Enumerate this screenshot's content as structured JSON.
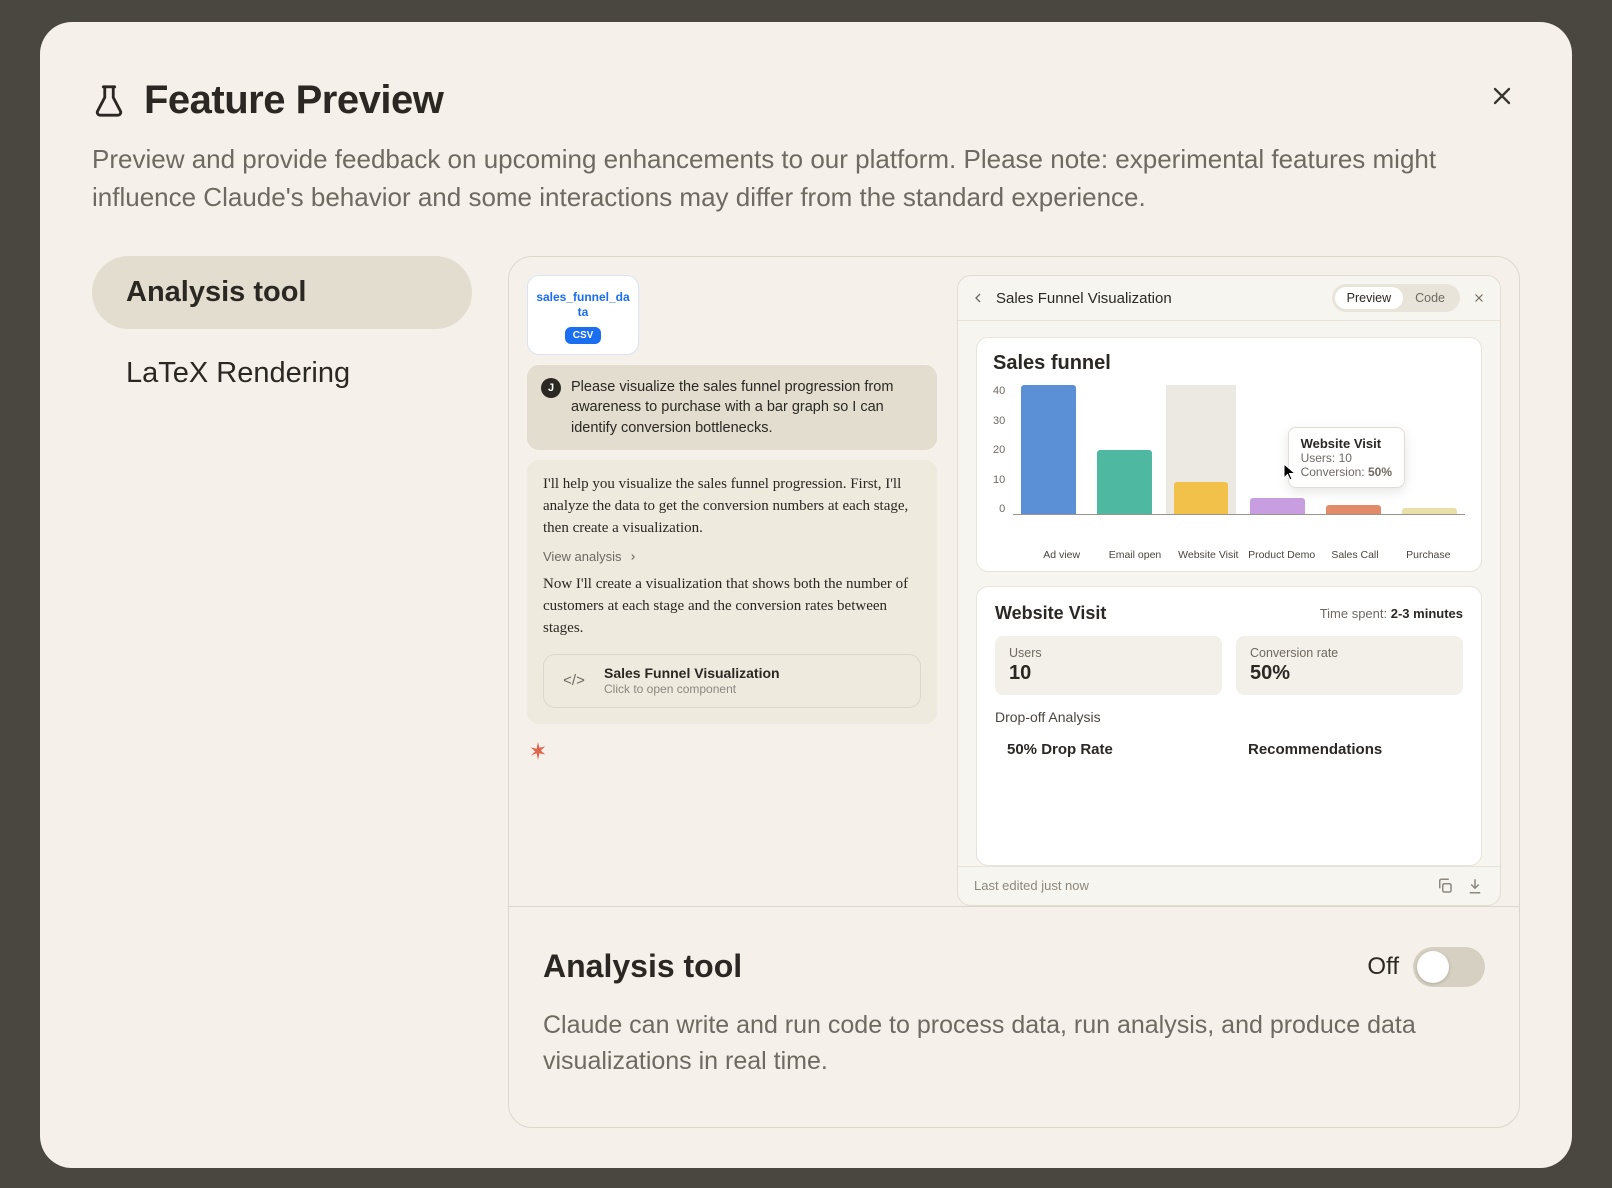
{
  "modal": {
    "title": "Feature Preview",
    "subtitle": "Preview and provide feedback on upcoming enhancements to our platform. Please note: experimental features might influence Claude's behavior and some interactions may differ from the standard experience."
  },
  "sidebar": {
    "items": [
      {
        "label": "Analysis tool",
        "active": true
      },
      {
        "label": "LaTeX Rendering",
        "active": false
      }
    ]
  },
  "chat": {
    "file": {
      "name": "sales_funnel_data",
      "badge": "CSV"
    },
    "user_avatar": "J",
    "user_message": "Please visualize the sales funnel progression from awareness to purchase with a bar graph so I can identify conversion bottlenecks.",
    "assistant_p1": "I'll help you visualize the sales funnel progression. First, I'll analyze the data to get the conversion numbers at each stage, then create a visualization.",
    "view_analysis": "View analysis",
    "assistant_p2": "Now I'll create a visualization that shows both the number of customers at each stage and the conversion rates between stages.",
    "component": {
      "title": "Sales Funnel Visualization",
      "subtitle": "Click to open component"
    }
  },
  "viz": {
    "header_title": "Sales Funnel Visualization",
    "tab_preview": "Preview",
    "tab_code": "Code",
    "chart_title": "Sales funnel",
    "y_ticks": [
      "40",
      "30",
      "20",
      "10",
      "0"
    ],
    "bars": [
      {
        "label": "Ad view",
        "value": 40,
        "color": "#5b8fd6"
      },
      {
        "label": "Email open",
        "value": 20,
        "color": "#4fb8a0"
      },
      {
        "label": "Website Visit",
        "value": 10,
        "color": "#f1c14a",
        "highlight": true
      },
      {
        "label": "Product Demo",
        "value": 5,
        "color": "#c89ee0"
      },
      {
        "label": "Sales Call",
        "value": 3,
        "color": "#e28b6b"
      },
      {
        "label": "Purchase",
        "value": 2,
        "color": "#e9dfa8"
      }
    ],
    "y_max": 40,
    "tooltip": {
      "title": "Website Visit",
      "users_label": "Users:",
      "users_value": "10",
      "conv_label": "Conversion:",
      "conv_value": "50%"
    },
    "detail": {
      "title": "Website Visit",
      "time_label": "Time spent:",
      "time_value": "2-3 minutes",
      "stats": [
        {
          "label": "Users",
          "value": "10"
        },
        {
          "label": "Conversion rate",
          "value": "50%"
        }
      ],
      "drop_section": "Drop-off Analysis",
      "drop_rate": "50% Drop Rate",
      "recs": "Recommendations"
    },
    "footer": "Last edited just now"
  },
  "feature": {
    "title": "Analysis tool",
    "toggle_label": "Off",
    "toggle_on": false,
    "description": "Claude can write and run code to process data, run analysis, and produce data visualizations in real time."
  },
  "colors": {
    "backdrop": "#4a4741",
    "modal_bg": "#f5f1ea",
    "sidebar_active": "#e3ddd0",
    "border": "#dcd7cc"
  }
}
